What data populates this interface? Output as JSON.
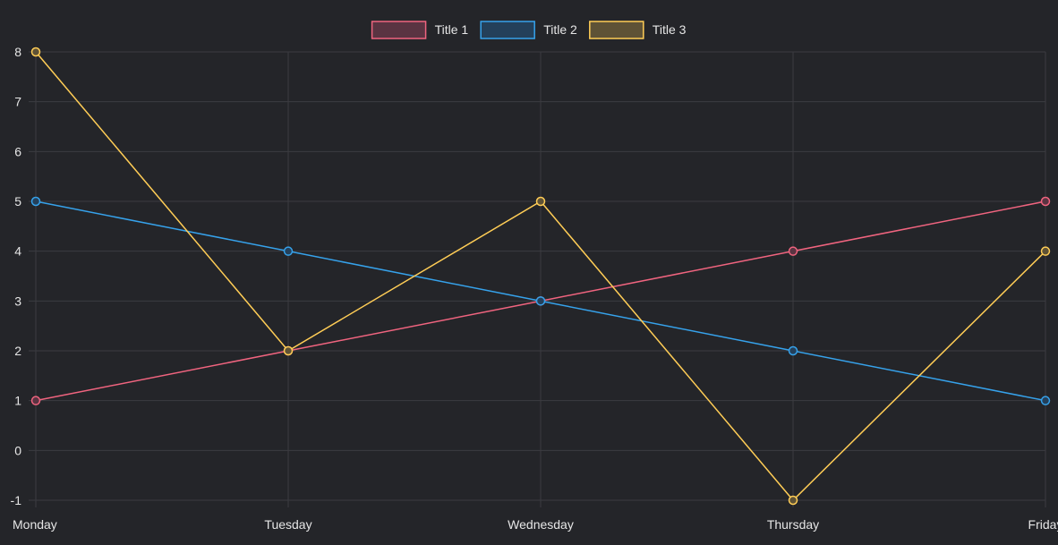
{
  "chart_data": {
    "type": "line",
    "categories": [
      "Monday",
      "Tuesday",
      "Wednesday",
      "Thursday",
      "Friday"
    ],
    "series": [
      {
        "name": "Title 1",
        "color": "#f0647f",
        "fill": "#5a3442",
        "values": [
          1,
          2,
          3,
          4,
          5
        ]
      },
      {
        "name": "Title 2",
        "color": "#36a2eb",
        "fill": "#24405a",
        "values": [
          5,
          4,
          3,
          2,
          1
        ]
      },
      {
        "name": "Title 3",
        "color": "#ffcd56",
        "fill": "#5e5236",
        "values": [
          8,
          2,
          5,
          -1,
          4
        ]
      }
    ],
    "title": "",
    "xlabel": "",
    "ylabel": "",
    "ylim": [
      -1,
      8
    ],
    "yticks": [
      -1,
      0,
      1,
      2,
      3,
      4,
      5,
      6,
      7,
      8
    ],
    "grid": true,
    "legend_position": "top"
  },
  "colors": {
    "background": "#242529",
    "grid": "#3b3c41",
    "tick_text": "#e6e6e6"
  }
}
